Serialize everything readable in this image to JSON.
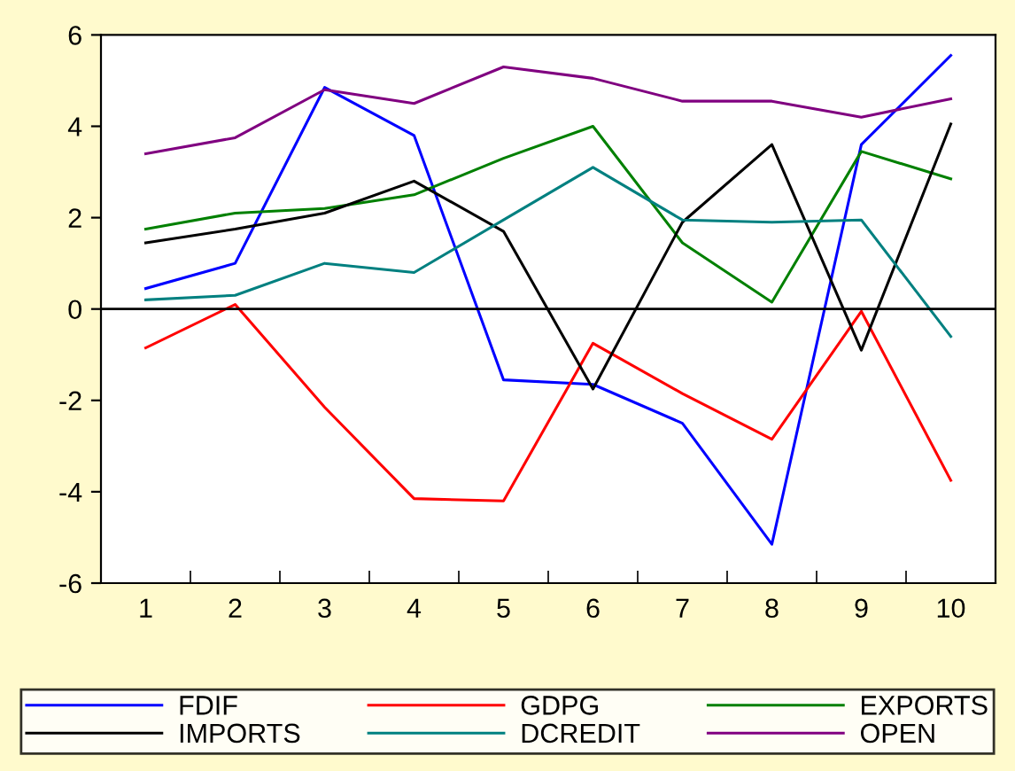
{
  "chart_data": {
    "type": "line",
    "categories": [
      "1",
      "2",
      "3",
      "4",
      "5",
      "6",
      "7",
      "8",
      "9",
      "10"
    ],
    "series": [
      {
        "name": "FDIF",
        "color": "#0000ff",
        "values": [
          0.45,
          1.0,
          4.85,
          3.8,
          -1.55,
          -1.65,
          -2.5,
          -5.15,
          3.6,
          5.55
        ]
      },
      {
        "name": "GDPG",
        "color": "#ff0000",
        "values": [
          -0.85,
          0.1,
          -2.15,
          -4.15,
          -4.2,
          -0.75,
          -1.85,
          -2.85,
          -0.05,
          -3.75
        ]
      },
      {
        "name": "EXPORTS",
        "color": "#008000",
        "values": [
          1.75,
          2.1,
          2.2,
          2.5,
          3.3,
          4.0,
          1.45,
          0.15,
          3.45,
          2.85
        ]
      },
      {
        "name": "IMPORTS",
        "color": "#000000",
        "values": [
          1.45,
          1.75,
          2.1,
          2.8,
          1.7,
          -1.75,
          1.9,
          3.6,
          -0.9,
          4.05
        ]
      },
      {
        "name": "DCREDIT",
        "color": "#008080",
        "values": [
          0.2,
          0.3,
          1.0,
          0.8,
          1.95,
          3.1,
          1.95,
          1.9,
          1.95,
          -0.6
        ]
      },
      {
        "name": "OPEN",
        "color": "#800080",
        "values": [
          3.4,
          3.75,
          4.8,
          4.5,
          5.3,
          5.05,
          4.55,
          4.55,
          4.2,
          4.6
        ]
      }
    ],
    "ylim": [
      -6,
      6
    ],
    "yticks": [
      -6,
      -4,
      -2,
      0,
      2,
      4,
      6
    ],
    "ref_lines": [
      {
        "axis": "y",
        "value": 0,
        "color": "#000000"
      }
    ],
    "grid": false,
    "legend": "bottom",
    "marker": "none",
    "line_style": "solid"
  }
}
